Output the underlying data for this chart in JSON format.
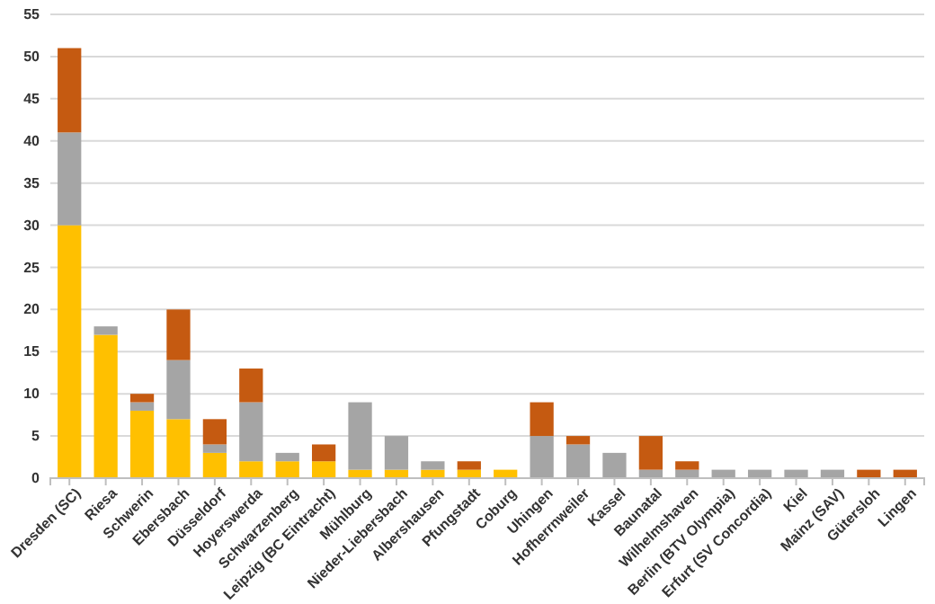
{
  "chart_data": {
    "type": "bar",
    "stacked": true,
    "grid": "y",
    "ylim": [
      0,
      55
    ],
    "yticks": [
      0,
      5,
      10,
      15,
      20,
      25,
      30,
      35,
      40,
      45,
      50,
      55
    ],
    "categories": [
      "Dresden (SC)",
      "Riesa",
      "Schwerin",
      "Ebersbach",
      "Düsseldorf",
      "Hoyerswerda",
      "Schwarzenberg",
      "Leipzig (BC Eintracht)",
      "Mühlburg",
      "Nieder-Liebersbach",
      "Albershausen",
      "Pfungstadt",
      "Coburg",
      "Uhingen",
      "Hofherrnweiler",
      "Kassel",
      "Baunatal",
      "Wilhelmshaven",
      "Berlin (BTV Olympia)",
      "Erfurt (SV Concordia)",
      "Kiel",
      "Mainz (SAV)",
      "Gütersloh",
      "Lingen"
    ],
    "series": [
      {
        "color": "#ffc000",
        "values": [
          30,
          17,
          8,
          7,
          3,
          2,
          2,
          2,
          1,
          1,
          1,
          1,
          1,
          0,
          0,
          0,
          0,
          0,
          0,
          0,
          0,
          0,
          0,
          0
        ]
      },
      {
        "color": "#a5a5a5",
        "values": [
          11,
          1,
          1,
          7,
          1,
          7,
          1,
          0,
          8,
          4,
          1,
          0,
          0,
          5,
          4,
          3,
          1,
          1,
          1,
          1,
          1,
          1,
          0,
          0
        ]
      },
      {
        "color": "#c55a11",
        "values": [
          10,
          0,
          1,
          6,
          3,
          4,
          0,
          2,
          0,
          0,
          0,
          1,
          0,
          4,
          1,
          0,
          4,
          1,
          0,
          0,
          0,
          0,
          1,
          1
        ]
      }
    ]
  }
}
